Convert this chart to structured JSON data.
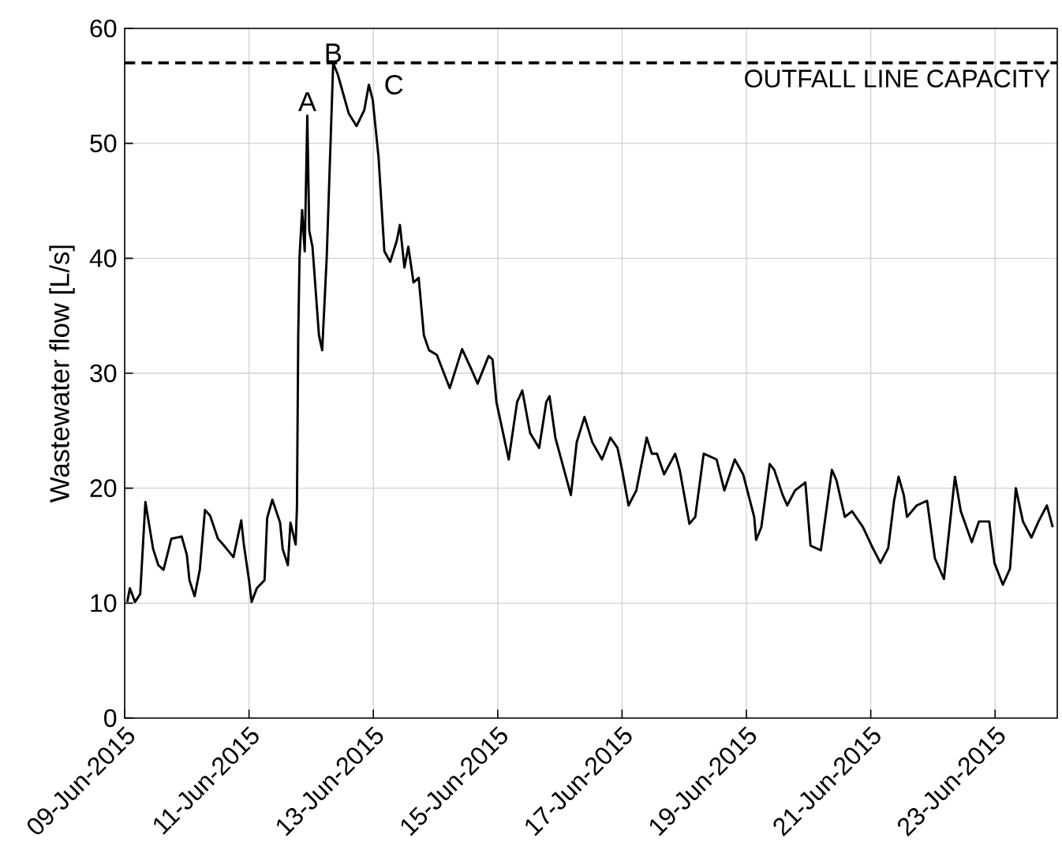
{
  "chart_data": {
    "type": "line",
    "ylabel": "Wastewater flow [L/s]",
    "xlim": [
      "2015-06-09",
      "2015-06-24"
    ],
    "xticks": [
      {
        "value": "2015-06-09",
        "label": "09-Jun-2015"
      },
      {
        "value": "2015-06-11",
        "label": "11-Jun-2015"
      },
      {
        "value": "2015-06-13",
        "label": "13-Jun-2015"
      },
      {
        "value": "2015-06-15",
        "label": "15-Jun-2015"
      },
      {
        "value": "2015-06-17",
        "label": "17-Jun-2015"
      },
      {
        "value": "2015-06-19",
        "label": "19-Jun-2015"
      },
      {
        "value": "2015-06-21",
        "label": "21-Jun-2015"
      },
      {
        "value": "2015-06-23",
        "label": "23-Jun-2015"
      }
    ],
    "ylim": [
      0,
      60
    ],
    "yticks": [
      0,
      10,
      20,
      30,
      40,
      50,
      60
    ],
    "grid": true,
    "marker": "none",
    "line_style": "solid",
    "series": [
      {
        "color": "#000000",
        "x": [
          "2015-06-09T01:00",
          "2015-06-09T02:00",
          "2015-06-09T04:00",
          "2015-06-09T06:00",
          "2015-06-09T08:00",
          "2015-06-09T11:00",
          "2015-06-09T13:00",
          "2015-06-09T15:00",
          "2015-06-09T18:00",
          "2015-06-09T22:00",
          "2015-06-10T00:00",
          "2015-06-10T01:00",
          "2015-06-10T03:00",
          "2015-06-10T05:00",
          "2015-06-10T07:00",
          "2015-06-10T09:00",
          "2015-06-10T12:00",
          "2015-06-10T14:00",
          "2015-06-10T18:00",
          "2015-06-10T21:00",
          "2015-06-10T22:00",
          "2015-06-11T00:00",
          "2015-06-11T01:00",
          "2015-06-11T03:00",
          "2015-06-11T06:00",
          "2015-06-11T07:00",
          "2015-06-11T09:00",
          "2015-06-11T12:00",
          "2015-06-11T13:00",
          "2015-06-11T15:00",
          "2015-06-11T16:00",
          "2015-06-11T18:00",
          "2015-06-11T18:30",
          "2015-06-11T19:00",
          "2015-06-11T19:30",
          "2015-06-11T20:30",
          "2015-06-11T21:30",
          "2015-06-11T22:30",
          "2015-06-11T23:15",
          "2015-06-12T00:30",
          "2015-06-12T03:00",
          "2015-06-12T04:15",
          "2015-06-12T06:00",
          "2015-06-12T08:30",
          "2015-06-12T10:15",
          "2015-06-12T12:30",
          "2015-06-12T14:30",
          "2015-06-12T17:30",
          "2015-06-12T20:30",
          "2015-06-12T22:15",
          "2015-06-12T23:45",
          "2015-06-13T02:00",
          "2015-06-13T04:15",
          "2015-06-13T06:30",
          "2015-06-13T09:00",
          "2015-06-13T10:15",
          "2015-06-13T12:00",
          "2015-06-13T13:30",
          "2015-06-13T15:30",
          "2015-06-13T17:30",
          "2015-06-13T19:30",
          "2015-06-13T21:30",
          "2015-06-14T00:30",
          "2015-06-14T05:30",
          "2015-06-14T10:15",
          "2015-06-14T13:30",
          "2015-06-14T16:15",
          "2015-06-14T20:30",
          "2015-06-14T22:00",
          "2015-06-14T23:30",
          "2015-06-15T04:15",
          "2015-06-15T07:30",
          "2015-06-15T09:30",
          "2015-06-15T12:30",
          "2015-06-15T16:00",
          "2015-06-15T18:45",
          "2015-06-15T20:00",
          "2015-06-15T22:15",
          "2015-06-16T04:15",
          "2015-06-16T06:30",
          "2015-06-16T09:30",
          "2015-06-16T12:30",
          "2015-06-16T16:15",
          "2015-06-16T19:30",
          "2015-06-16T22:15",
          "2015-06-17T00:00",
          "2015-06-17T02:30",
          "2015-06-17T05:30",
          "2015-06-17T09:30",
          "2015-06-17T11:30",
          "2015-06-17T13:30",
          "2015-06-17T16:15",
          "2015-06-17T20:30",
          "2015-06-17T22:15",
          "2015-06-18T02:00",
          "2015-06-18T04:15",
          "2015-06-18T07:30",
          "2015-06-18T12:30",
          "2015-06-18T15:30",
          "2015-06-18T19:30",
          "2015-06-18T22:45",
          "2015-06-19T03:00",
          "2015-06-19T03:45",
          "2015-06-19T05:45",
          "2015-06-19T09:00",
          "2015-06-19T10:45",
          "2015-06-19T14:00",
          "2015-06-19T15:45",
          "2015-06-19T18:45",
          "2015-06-19T22:45",
          "2015-06-20T00:45",
          "2015-06-20T04:45",
          "2015-06-20T09:00",
          "2015-06-20T10:45",
          "2015-06-20T14:00",
          "2015-06-20T16:45",
          "2015-06-20T21:00",
          "2015-06-21T00:45",
          "2015-06-21T03:45",
          "2015-06-21T06:45",
          "2015-06-21T09:00",
          "2015-06-21T10:45",
          "2015-06-21T12:45",
          "2015-06-21T14:00",
          "2015-06-21T17:45",
          "2015-06-21T21:45",
          "2015-06-22T00:45",
          "2015-06-22T04:15",
          "2015-06-22T08:30",
          "2015-06-22T10:45",
          "2015-06-22T15:00",
          "2015-06-22T17:45",
          "2015-06-22T21:45",
          "2015-06-22T23:45",
          "2015-06-23T03:00",
          "2015-06-23T05:45",
          "2015-06-23T08:00",
          "2015-06-23T10:45",
          "2015-06-23T14:00",
          "2015-06-23T16:45",
          "2015-06-23T20:00",
          "2015-06-23T22:15"
        ],
        "values": [
          10.1,
          11.3,
          10.1,
          10.8,
          18.8,
          14.7,
          13.3,
          12.9,
          15.6,
          15.8,
          14.2,
          12.0,
          10.6,
          12.9,
          18.1,
          17.6,
          15.6,
          15.1,
          14.0,
          17.2,
          15.1,
          12.0,
          10.1,
          11.3,
          12.0,
          17.4,
          19.0,
          17.0,
          14.7,
          13.3,
          17.0,
          15.1,
          18.3,
          33.3,
          40.1,
          44.2,
          40.6,
          52.4,
          42.4,
          41.0,
          33.3,
          32.0,
          40.1,
          57.0,
          56.0,
          54.2,
          52.6,
          51.5,
          52.9,
          55.1,
          53.8,
          48.8,
          40.6,
          39.7,
          41.5,
          42.9,
          39.2,
          41.0,
          37.9,
          38.3,
          33.3,
          32.0,
          31.6,
          28.7,
          32.1,
          30.5,
          29.1,
          31.5,
          31.2,
          27.5,
          22.5,
          27.5,
          28.5,
          24.8,
          23.5,
          27.5,
          28.0,
          24.4,
          19.4,
          24.0,
          26.2,
          24.0,
          22.5,
          24.4,
          23.5,
          21.6,
          18.5,
          19.8,
          24.4,
          23.0,
          23.0,
          21.2,
          23.0,
          21.6,
          16.9,
          17.5,
          23.0,
          22.5,
          19.8,
          22.5,
          21.2,
          17.5,
          15.5,
          16.6,
          22.1,
          21.6,
          19.4,
          18.5,
          19.8,
          20.5,
          15.0,
          14.6,
          21.6,
          20.7,
          17.5,
          18.0,
          16.6,
          14.8,
          13.5,
          14.8,
          18.9,
          21.0,
          19.4,
          17.5,
          18.5,
          18.9,
          13.9,
          12.1,
          21.0,
          18.0,
          15.3,
          17.1,
          17.1,
          13.5,
          11.6,
          13.0,
          20.0,
          17.1,
          15.7,
          17.1,
          18.5,
          16.6
        ]
      }
    ],
    "ref_lines": [
      {
        "axis": "y",
        "value": 57,
        "label": "OUTFALL LINE CAPACITY",
        "color": "#000000",
        "line_style": "dashed"
      }
    ],
    "annotations": [
      {
        "text": "A",
        "x": "2015-06-11T22:30",
        "y": 52.4
      },
      {
        "text": "B",
        "x": "2015-06-12T08:30",
        "y": 57.0
      },
      {
        "text": "C",
        "x": "2015-06-12T22:15",
        "y": 55.1
      }
    ]
  }
}
